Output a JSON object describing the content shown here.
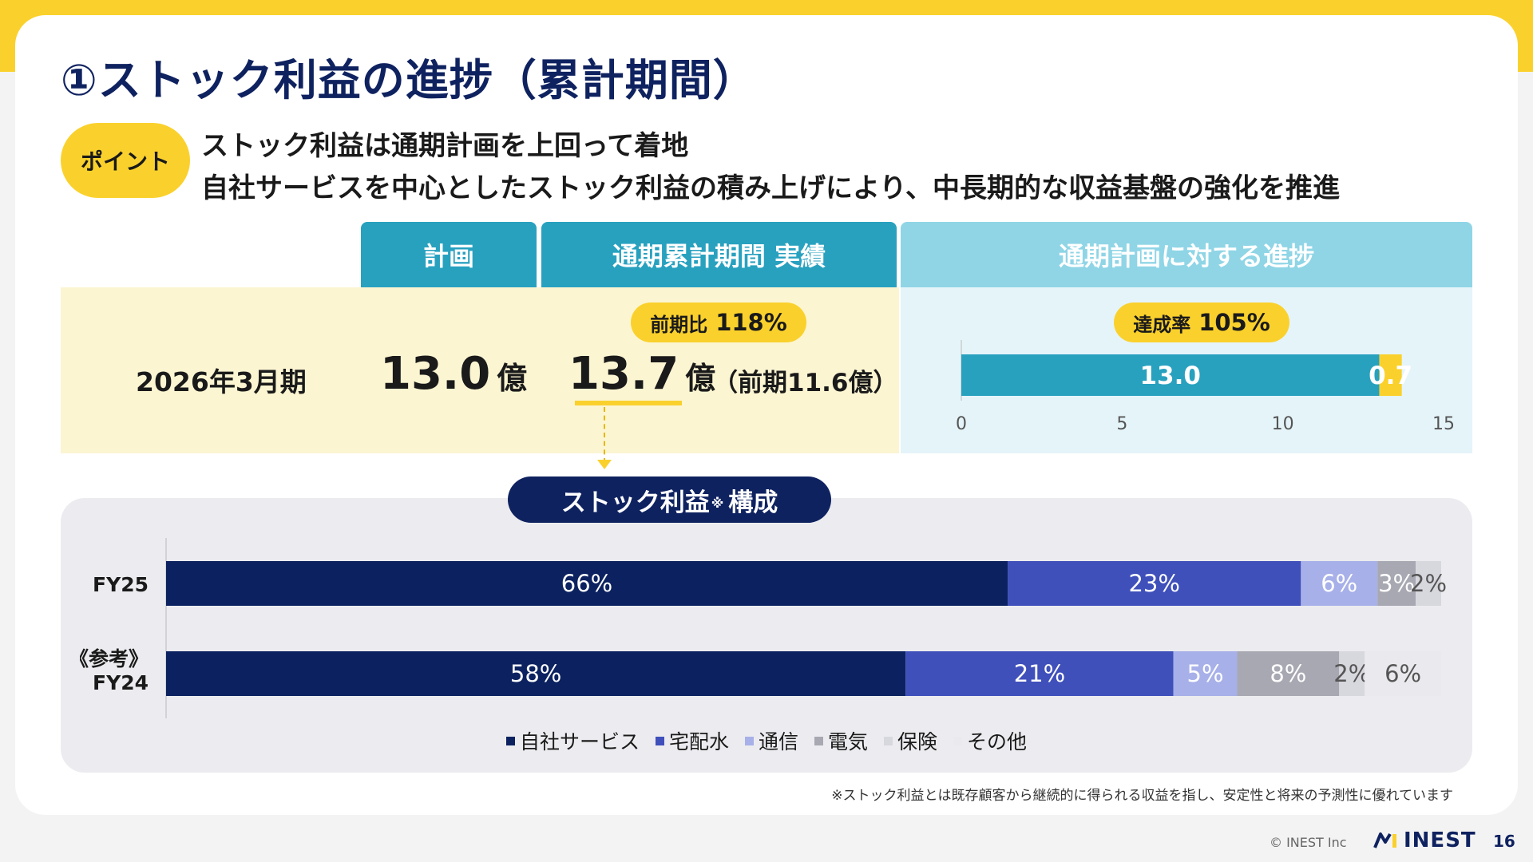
{
  "title": "①ストック利益の進捗（累計期間）",
  "point": {
    "badge": "ポイント",
    "line1": "ストック利益は通期計画を上回って着地",
    "line2": "自社サービスを中心としたストック利益の積み上げにより、中長期的な収益基盤の強化を推進"
  },
  "table": {
    "header_plan": "計画",
    "header_actual": "通期累計期間 実績",
    "header_progress": "通期計画に対する進捗",
    "period": "2026年3月期",
    "plan_value": "13.0",
    "plan_unit": "億",
    "actual_value": "13.7",
    "actual_unit": "億",
    "prev_note": "（前期11.6億）",
    "yoy_label": "前期比",
    "yoy_value": "118%",
    "achieve_label": "達成率",
    "achieve_value": "105%"
  },
  "stock_label": {
    "main": "ストック利益",
    "note": "※",
    "suffix": "構成"
  },
  "footnote": "※ストック利益とは既存顧客から継続的に得られる収益を指し、安定性と将来の予測性に優れています",
  "footer": {
    "copyright": "©  INEST Inc",
    "logo": "INEST",
    "page": "16"
  },
  "colors": {
    "navy": "#0f2260",
    "yellow": "#fad12c",
    "teal": "#28a1bf",
    "light_teal": "#8fd5e6"
  },
  "chart_data": [
    {
      "type": "bar",
      "orientation": "horizontal",
      "stacked": true,
      "categories": [
        ""
      ],
      "series": [
        {
          "values": [
            13.0
          ],
          "color": "#28a1bf",
          "label": "13.0"
        },
        {
          "values": [
            0.7
          ],
          "color": "#fad12c",
          "label": "0.7"
        }
      ],
      "xlim": [
        0,
        15
      ],
      "xticks": [
        0,
        5,
        10,
        15
      ]
    },
    {
      "type": "bar",
      "orientation": "horizontal",
      "stacked": true,
      "percent": true,
      "categories": [
        "FY25",
        "《参考》FY24"
      ],
      "series": [
        {
          "name": "自社サービス",
          "values": [
            66,
            58
          ],
          "labels": [
            "66%",
            "58%"
          ],
          "color": "#0c2260",
          "text_color": "#ffffff"
        },
        {
          "name": "宅配水",
          "values": [
            23,
            21
          ],
          "labels": [
            "23%",
            "21%"
          ],
          "color": "#3f50bb",
          "text_color": "#ffffff"
        },
        {
          "name": "通信",
          "values": [
            6,
            5
          ],
          "labels": [
            "6%",
            "5%"
          ],
          "color": "#a7b0e8",
          "text_color": "#ffffff"
        },
        {
          "name": "電気",
          "values": [
            3,
            8
          ],
          "labels": [
            "3%",
            "8%"
          ],
          "color": "#a8a8b2",
          "text_color": "#ffffff"
        },
        {
          "name": "保険",
          "values": [
            2,
            2
          ],
          "labels": [
            "2%",
            "2%"
          ],
          "color": "#d7d7de",
          "text_color": "#555555"
        },
        {
          "name": "その他",
          "values": [
            0,
            6
          ],
          "labels": [
            "",
            "6%"
          ],
          "color": "#e9e9ee",
          "text_color": "#555555"
        }
      ]
    }
  ]
}
